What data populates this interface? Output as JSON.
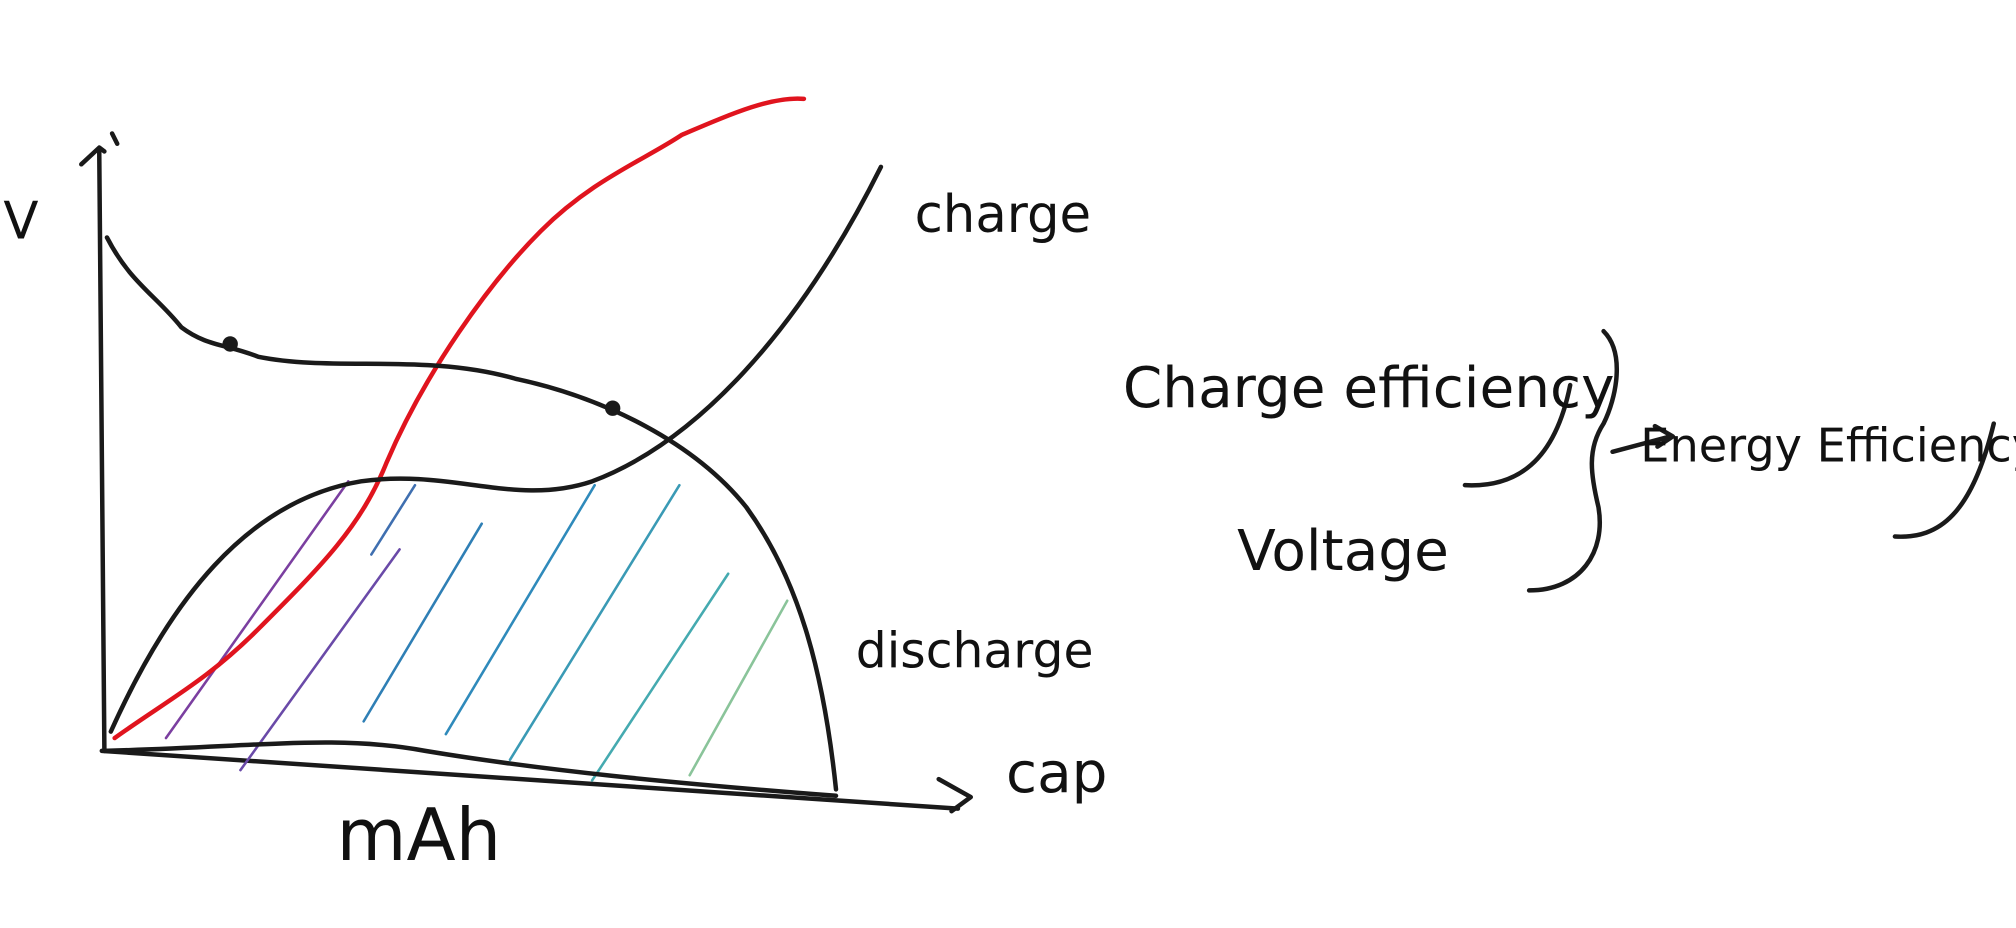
{
  "labels": {
    "y_axis": "V",
    "charge": "charge",
    "discharge": "discharge",
    "x_axis": "cap",
    "x_unit": "mAh",
    "charge_efficiency": "Charge efficiency",
    "voltage": "Voltage",
    "energy_efficiency": "Energy Efficiency"
  }
}
